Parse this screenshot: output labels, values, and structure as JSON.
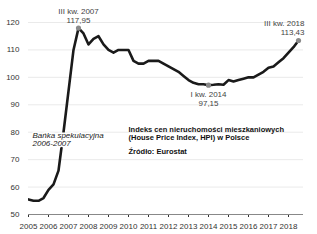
{
  "chart_data": {
    "type": "line",
    "title": "Indeks cen nieruchomości mieszkaniowych (House Price Index, HPI) w Polsce",
    "subtitle": "Źródło: Eurostat",
    "note": "Bańka spekulacyjna 2006-2007",
    "color": "#1a1a1a",
    "grid": true,
    "x": [
      2005,
      2005.25,
      2005.5,
      2005.75,
      2006,
      2006.25,
      2006.5,
      2006.75,
      2007,
      2007.25,
      2007.5,
      2007.75,
      2008,
      2008.25,
      2008.5,
      2008.75,
      2009,
      2009.25,
      2009.5,
      2009.75,
      2010,
      2010.25,
      2010.5,
      2010.75,
      2011,
      2011.25,
      2011.5,
      2011.75,
      2012,
      2012.25,
      2012.5,
      2012.75,
      2013,
      2013.25,
      2013.5,
      2013.75,
      2014,
      2014.25,
      2014.5,
      2014.75,
      2015,
      2015.25,
      2015.5,
      2015.75,
      2016,
      2016.25,
      2016.5,
      2016.75,
      2017,
      2017.25,
      2017.5,
      2017.75,
      2018,
      2018.25,
      2018.5
    ],
    "values": [
      55.5,
      55,
      55,
      56,
      59,
      61,
      66,
      80,
      95,
      110,
      117.95,
      116,
      112,
      114,
      115,
      112,
      110,
      109,
      110,
      110,
      110,
      106,
      105,
      105,
      106,
      106,
      106,
      105,
      104,
      103,
      102,
      100.5,
      99,
      98,
      97.5,
      97.5,
      97.15,
      97.3,
      97.5,
      97.3,
      99,
      98.5,
      99,
      99.5,
      100,
      100,
      101,
      102,
      103.5,
      104,
      105.5,
      107,
      109,
      111,
      113.43
    ],
    "xlim": [
      2005,
      2018.75
    ],
    "xticks": [
      2005,
      2006,
      2007,
      2008,
      2009,
      2010,
      2011,
      2012,
      2013,
      2014,
      2015,
      2016,
      2017,
      2018
    ],
    "ylim": [
      50,
      120
    ],
    "yticks": [
      50,
      60,
      70,
      80,
      90,
      100,
      110,
      120
    ],
    "annotations": [
      {
        "x": 2007.5,
        "y": 117.95,
        "label": "III kw. 2007",
        "value_label": "117,95"
      },
      {
        "x": 2014,
        "y": 97.15,
        "label": "I kw. 2014",
        "value_label": "97,15"
      },
      {
        "x": 2018.5,
        "y": 113.43,
        "label": "III kw. 2018",
        "value_label": "113,43"
      }
    ]
  }
}
